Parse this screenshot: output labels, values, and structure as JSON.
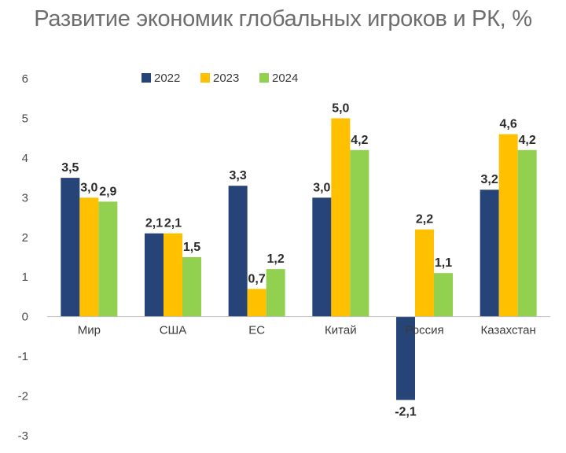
{
  "chart_data": {
    "type": "bar",
    "title": "Развитие экономик глобальных игроков и РК, %",
    "categories": [
      "Мир",
      "США",
      "ЕС",
      "Китай",
      "Россия",
      "Казахстан"
    ],
    "series": [
      {
        "name": "2022",
        "color": "#264478",
        "values": [
          3.5,
          2.1,
          3.3,
          3.0,
          -2.1,
          3.2
        ],
        "labels": [
          "3,5",
          "2,1",
          "3,3",
          "3,0",
          "-2,1",
          "3,2"
        ]
      },
      {
        "name": "2023",
        "color": "#FFC000",
        "values": [
          3.0,
          2.1,
          0.7,
          5.0,
          2.2,
          4.6
        ],
        "labels": [
          "3,0",
          "2,1",
          "0,7",
          "5,0",
          "2,2",
          "4,6"
        ]
      },
      {
        "name": "2024",
        "color": "#92D050",
        "values": [
          2.9,
          1.5,
          1.2,
          4.2,
          1.1,
          4.2
        ],
        "labels": [
          "2,9",
          "1,5",
          "1,2",
          "4,2",
          "1,1",
          "4,2"
        ]
      }
    ],
    "ylim": [
      -3,
      6
    ],
    "yticks": [
      "-3",
      "-2",
      "-1",
      "0",
      "1",
      "2",
      "3",
      "4",
      "5",
      "6"
    ],
    "grid": false,
    "legend": "top-center"
  }
}
